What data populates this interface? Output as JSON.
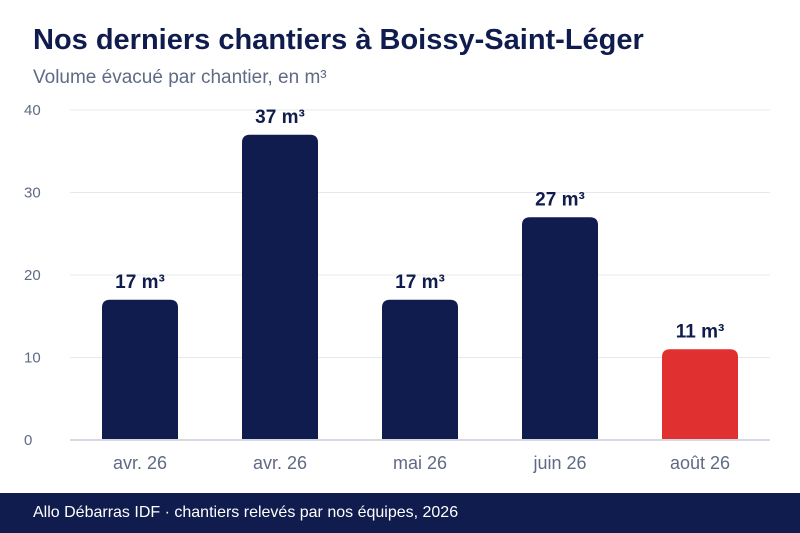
{
  "header": {
    "title": "Nos derniers chantiers à Boissy-Saint-Léger",
    "subtitle": "Volume évacué par chantier, en m³"
  },
  "footer": {
    "source": "Allo Débarras IDF · chantiers relevés par nos équipes, 2026"
  },
  "colors": {
    "bar": "#0f1c4d",
    "highlight": "#e03030"
  },
  "chart_data": {
    "type": "bar",
    "categories": [
      "avr. 26",
      "avr. 26",
      "mai 26",
      "juin 26",
      "août 26"
    ],
    "values": [
      17,
      37,
      17,
      27,
      11
    ],
    "value_labels": [
      "17 m³",
      "37 m³",
      "17 m³",
      "27 m³",
      "11 m³"
    ],
    "highlight_index": 4,
    "ylim": [
      0,
      40
    ],
    "yticks": [
      0,
      10,
      20,
      30,
      40
    ],
    "grid": true,
    "xlabel": "",
    "ylabel": ""
  }
}
